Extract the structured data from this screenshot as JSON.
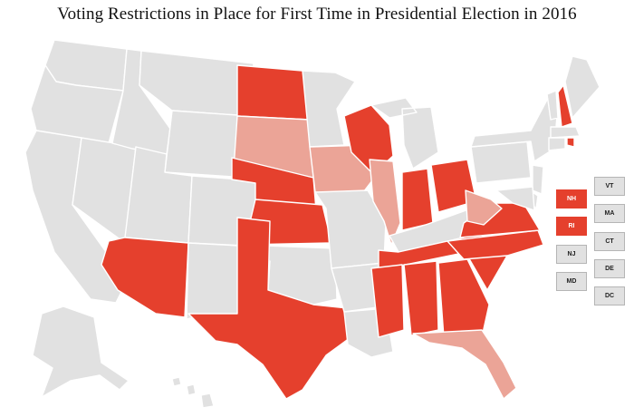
{
  "title": "Voting Restrictions in Place for First Time in Presidential Election in 2016",
  "colors": {
    "background_state": "#e1e1e1",
    "restriction": "#e5402d",
    "partial_restriction": "#eba497",
    "border": "#ffffff",
    "box_text_dark": "#222222",
    "box_text_light": "#ffffff"
  },
  "categories": {
    "restriction": [
      "AZ",
      "TX",
      "ND",
      "NE",
      "KS",
      "WI",
      "IN",
      "OH",
      "VA",
      "NC",
      "SC",
      "GA",
      "AL",
      "MS",
      "TN",
      "NH",
      "RI"
    ],
    "partial_restriction": [
      "SD",
      "IA",
      "IL",
      "WV",
      "FL"
    ],
    "none": [
      "WA",
      "OR",
      "CA",
      "NV",
      "ID",
      "MT",
      "WY",
      "UT",
      "CO",
      "NM",
      "MN",
      "MO",
      "AR",
      "LA",
      "OK",
      "KY",
      "MI",
      "PA",
      "NY",
      "ME",
      "VT",
      "NJ",
      "DE",
      "MD",
      "MA",
      "CT",
      "AK",
      "HI"
    ]
  },
  "small_state_boxes": [
    {
      "abbr": "NH",
      "status": "restriction"
    },
    {
      "abbr": "RI",
      "status": "restriction"
    },
    {
      "abbr": "NJ",
      "status": "none"
    },
    {
      "abbr": "MD",
      "status": "none"
    },
    {
      "abbr": "VT",
      "status": "none"
    },
    {
      "abbr": "MA",
      "status": "none"
    },
    {
      "abbr": "CT",
      "status": "none"
    },
    {
      "abbr": "DE",
      "status": "none"
    },
    {
      "abbr": "DC",
      "status": "none"
    }
  ]
}
